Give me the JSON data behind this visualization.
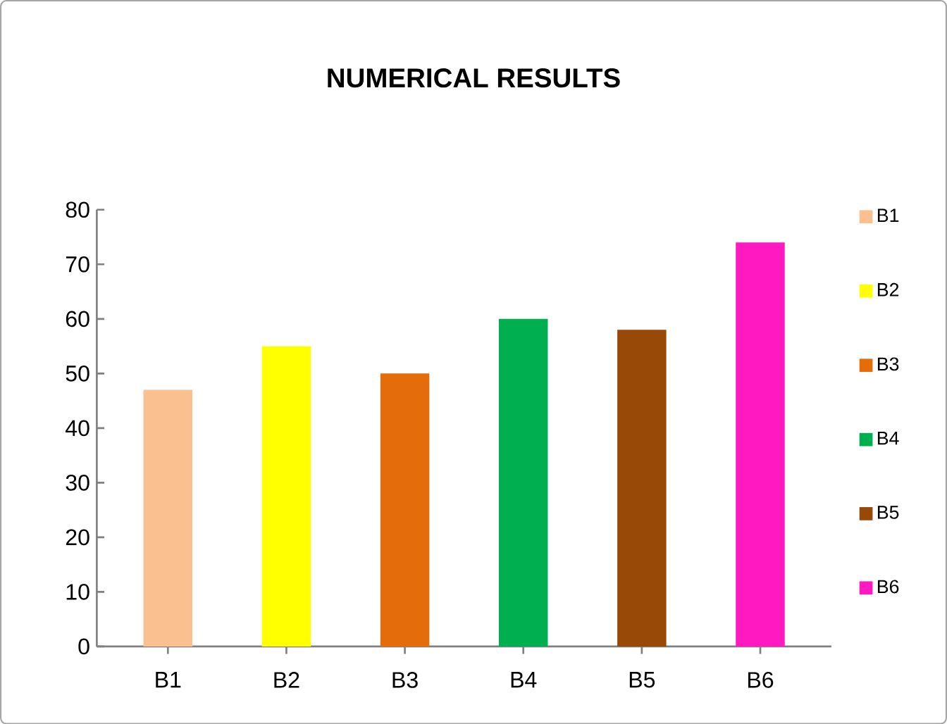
{
  "chart_data": {
    "type": "bar",
    "title": "NUMERICAL RESULTS",
    "categories": [
      "B1",
      "B2",
      "B3",
      "B4",
      "B5",
      "B6"
    ],
    "series": [
      {
        "name": "B1",
        "color": "#fac090",
        "values": [
          47,
          null,
          null,
          null,
          null,
          null
        ]
      },
      {
        "name": "B2",
        "color": "#ffff00",
        "values": [
          null,
          55,
          null,
          null,
          null,
          null
        ]
      },
      {
        "name": "B3",
        "color": "#e46c0a",
        "values": [
          null,
          null,
          50,
          null,
          null,
          null
        ]
      },
      {
        "name": "B4",
        "color": "#00b050",
        "values": [
          null,
          null,
          null,
          60,
          null,
          null
        ]
      },
      {
        "name": "B5",
        "color": "#984807",
        "values": [
          null,
          null,
          null,
          null,
          58,
          null
        ]
      },
      {
        "name": "B6",
        "color": "#ff19c0",
        "values": [
          null,
          null,
          null,
          null,
          null,
          74
        ]
      }
    ],
    "ylim": [
      0,
      80
    ],
    "yticks": [
      0,
      10,
      20,
      30,
      40,
      50,
      60,
      70,
      80
    ],
    "grid": false,
    "legend": "right"
  }
}
